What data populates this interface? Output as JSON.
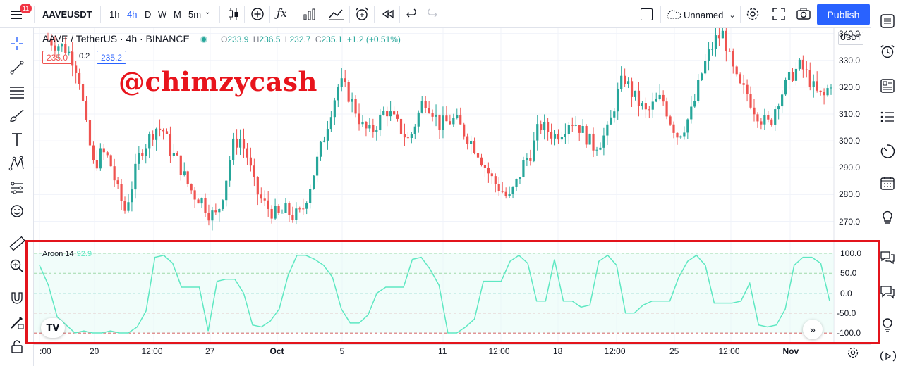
{
  "topbar": {
    "notifications": "11",
    "symbol": "AAVEUSDT",
    "intervals": [
      "1h",
      "4h",
      "D",
      "W",
      "M",
      "5m"
    ],
    "active_interval": "4h",
    "layout_name": "Unnamed",
    "publish_label": "Publish"
  },
  "legend": {
    "title": "AAVE / TetherUS · 4h · BINANCE",
    "o_label": "O",
    "o": "233.9",
    "h_label": "H",
    "h": "236.5",
    "l_label": "L",
    "l": "232.7",
    "c_label": "C",
    "c": "235.1",
    "change": "+1.2 (+0.51%)",
    "bid": "235.0",
    "spread": "0.2",
    "ask": "235.2"
  },
  "watermark": "@chimzycash",
  "price_axis": {
    "currency": "USDT",
    "ticks": [
      "340.0",
      "330.0",
      "320.0",
      "310.0",
      "300.0",
      "290.0",
      "280.0",
      "270.0"
    ]
  },
  "indicator": {
    "name": "Aroon 14",
    "value": "92.9",
    "ticks": [
      "100.0",
      "50.0",
      "0.0",
      "-50.0",
      "-100.0"
    ]
  },
  "time_axis": {
    "ticks": [
      ":00",
      "20",
      "12:00",
      "27",
      "Oct",
      "5",
      "11",
      "12:00",
      "18",
      "12:00",
      "25",
      "12:00",
      "Nov"
    ]
  },
  "colors": {
    "up": "#26a69a",
    "down": "#ef5350",
    "aroon_line": "#5ee8c2",
    "accent": "#2962ff",
    "highlight_box": "#e3141c"
  },
  "chart_data": {
    "type": "candlestick",
    "price_range": [
      262,
      342
    ],
    "aroon_range": [
      -100,
      100
    ],
    "candles_close_path": [
      338,
      336,
      335,
      332,
      325,
      305,
      290,
      296,
      293,
      282,
      274,
      284,
      296,
      300,
      305,
      304,
      296,
      292,
      285,
      280,
      278,
      273,
      272,
      283,
      298,
      301,
      294,
      282,
      277,
      274,
      272,
      274,
      272,
      273,
      282,
      292,
      302,
      313,
      322,
      318,
      312,
      305,
      303,
      307,
      312,
      308,
      304,
      300,
      308,
      316,
      312,
      306,
      307,
      308,
      304,
      300,
      296,
      290,
      285,
      282,
      278,
      284,
      292,
      296,
      306,
      304,
      302,
      304,
      308,
      306,
      302,
      298,
      300,
      304,
      316,
      324,
      318,
      314,
      310,
      314,
      316,
      308,
      302,
      306,
      312,
      324,
      332,
      338,
      340,
      328,
      320,
      318,
      312,
      308,
      306,
      315,
      320,
      325,
      328,
      324,
      318,
      316,
      322
    ],
    "aroon_oscillator_path": [
      70,
      20,
      -60,
      -80,
      -100,
      -95,
      -100,
      -100,
      -95,
      -100,
      -100,
      -85,
      -45,
      90,
      95,
      75,
      15,
      15,
      15,
      -95,
      30,
      35,
      35,
      0,
      -80,
      -85,
      -70,
      -40,
      45,
      95,
      95,
      85,
      70,
      40,
      -40,
      -75,
      -75,
      -55,
      0,
      15,
      15,
      15,
      85,
      90,
      60,
      20,
      -100,
      -100,
      -85,
      -65,
      30,
      30,
      30,
      80,
      95,
      75,
      -20,
      -20,
      85,
      -20,
      -20,
      -35,
      -30,
      80,
      95,
      70,
      -50,
      -50,
      -30,
      -20,
      -20,
      -20,
      40,
      80,
      95,
      70,
      -25,
      -25,
      -25,
      -20,
      25,
      -80,
      -85,
      -80,
      -40,
      70,
      90,
      90,
      75,
      -20
    ],
    "aroon_levels": [
      100,
      50,
      0,
      -50,
      -100
    ]
  }
}
